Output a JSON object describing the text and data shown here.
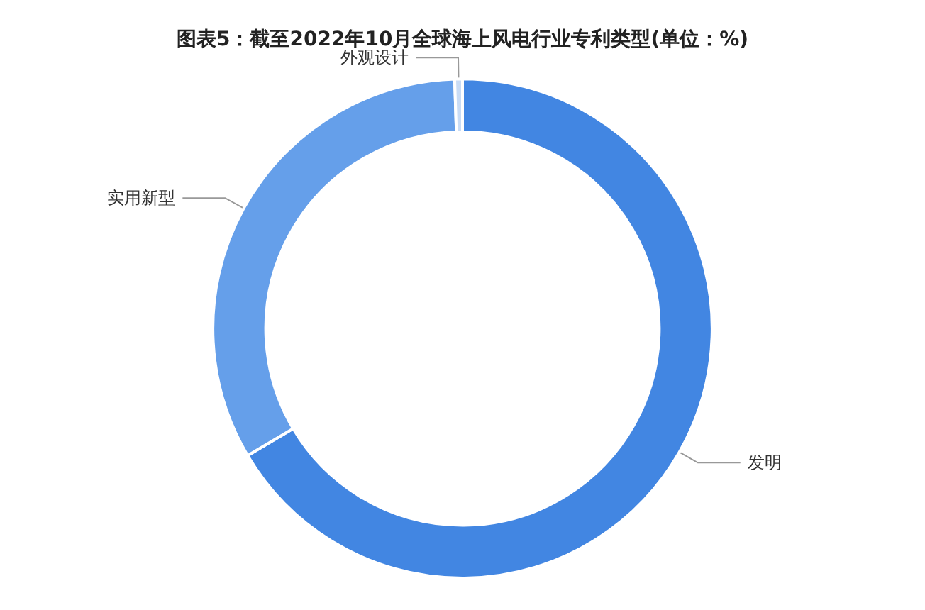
{
  "chart_data": {
    "type": "donut",
    "title": "图表5：截至2022年10月全球海上风电行业专利类型(单位：%)",
    "categories": [
      "发明",
      "实用新型",
      "外观设计"
    ],
    "values": [
      66.5,
      33.0,
      0.5
    ],
    "colors": [
      "#4286e2",
      "#659fea",
      "#c9dcf5"
    ],
    "legend": false
  }
}
